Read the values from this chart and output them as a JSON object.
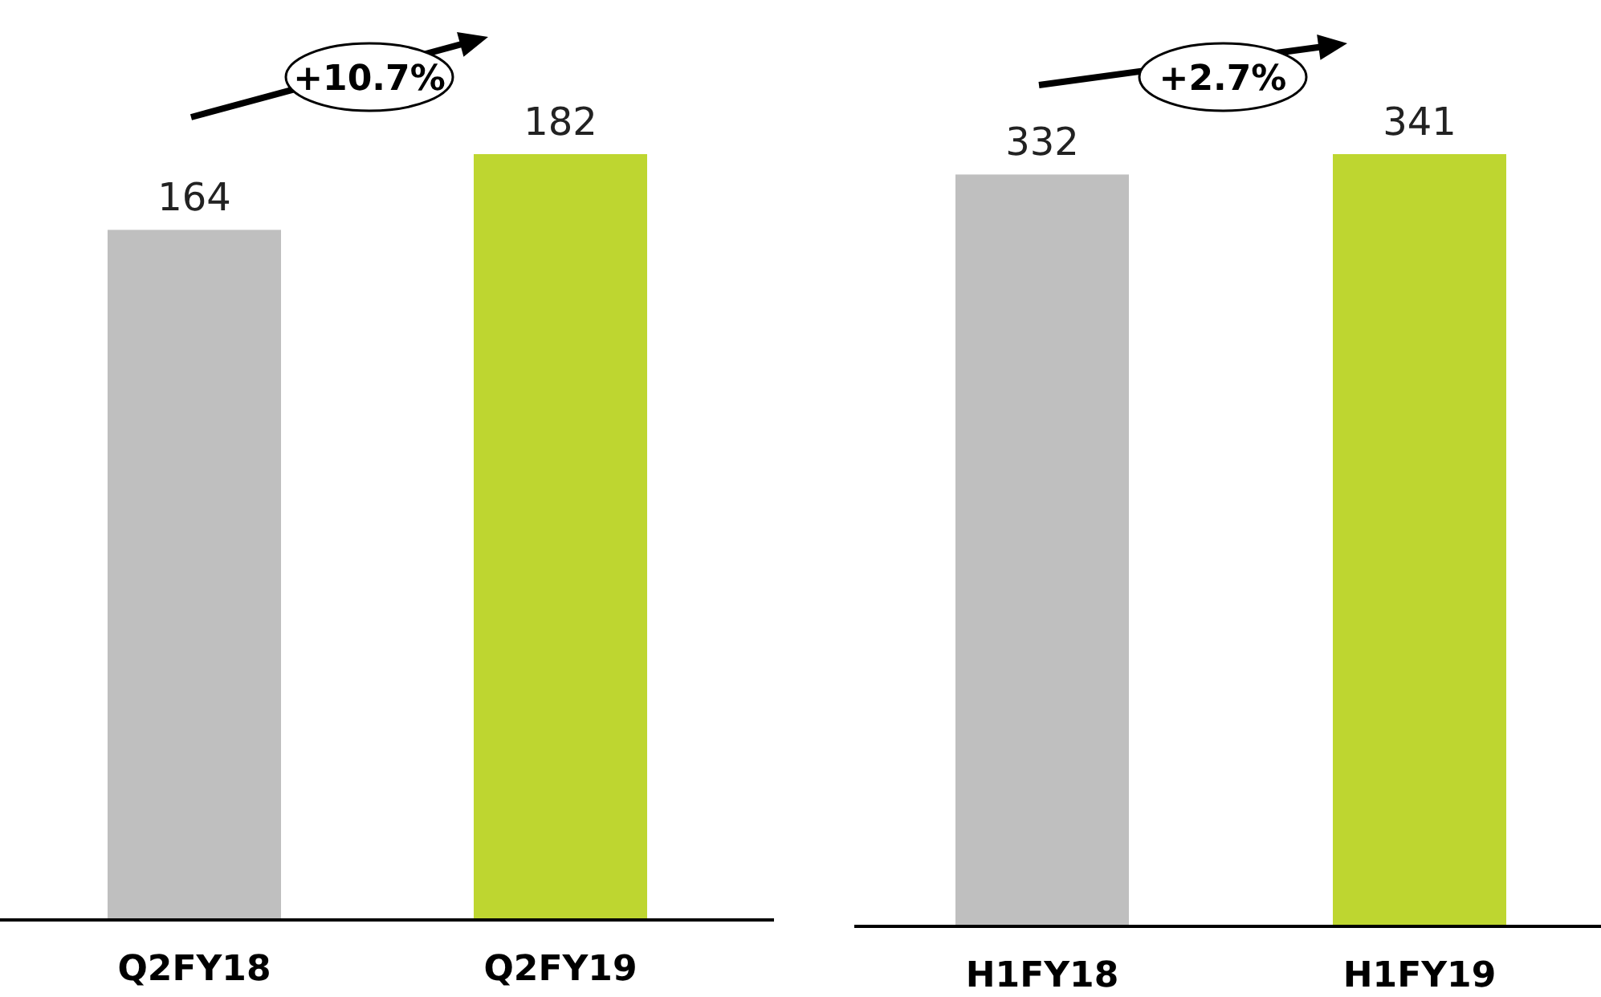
{
  "chart_data": [
    {
      "type": "bar",
      "categories": [
        "Q2FY18",
        "Q2FY19"
      ],
      "values": [
        164,
        182
      ],
      "colors": [
        "#bfbfbf",
        "#bed630"
      ],
      "tick_labels": "x",
      "data_labels": true,
      "annotations": [
        "+10.7%"
      ]
    },
    {
      "type": "bar",
      "categories": [
        "H1FY18",
        "H1FY19"
      ],
      "values": [
        332,
        341
      ],
      "colors": [
        "#bfbfbf",
        "#bed630"
      ],
      "tick_labels": "x",
      "data_labels": true,
      "annotations": [
        "+2.7%"
      ]
    }
  ]
}
